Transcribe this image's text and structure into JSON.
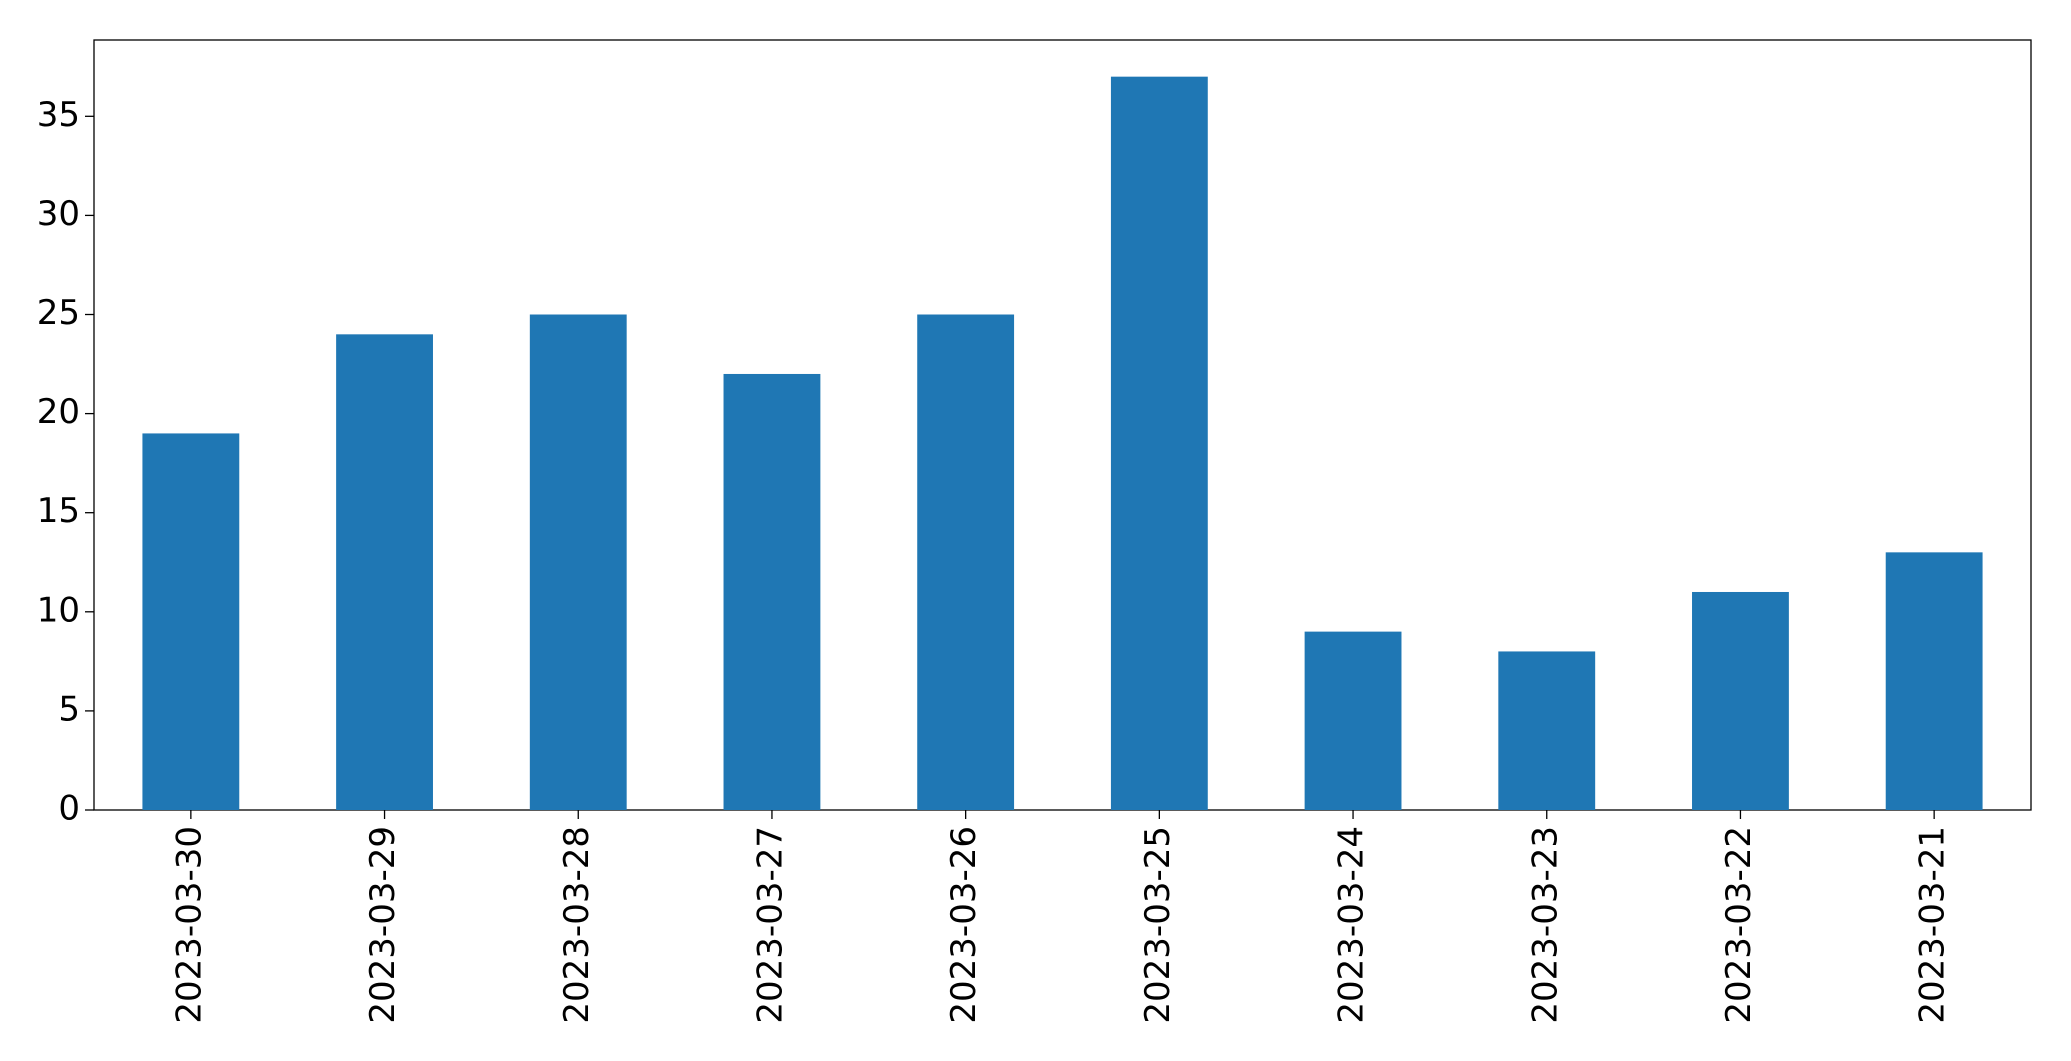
{
  "chart_data": {
    "type": "bar",
    "categories": [
      "2023-03-30",
      "2023-03-29",
      "2023-03-28",
      "2023-03-27",
      "2023-03-26",
      "2023-03-25",
      "2023-03-24",
      "2023-03-23",
      "2023-03-22",
      "2023-03-21"
    ],
    "values": [
      19,
      24,
      25,
      22,
      25,
      37,
      9,
      8,
      11,
      13
    ],
    "color": "#1f77b4",
    "ylim": [
      0,
      38.85
    ],
    "yticks": [
      0,
      5,
      10,
      15,
      20,
      25,
      30,
      35
    ],
    "grid": false
  }
}
